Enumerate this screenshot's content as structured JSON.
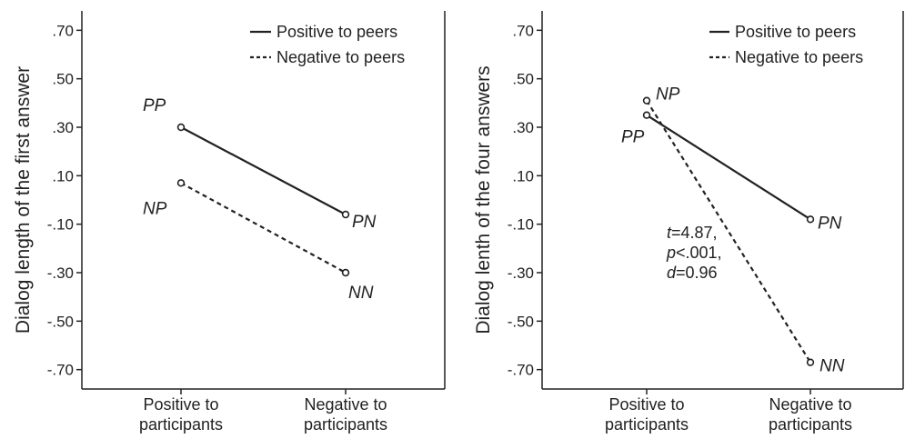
{
  "chart_data": [
    {
      "type": "line",
      "ylabel": "Dialog length of the first answer",
      "categories": [
        "Positive to participants",
        "Negative to participants"
      ],
      "category_lines": [
        [
          "Positive to",
          "participants"
        ],
        [
          "Negative to",
          "participants"
        ]
      ],
      "ylim": [
        -0.78,
        0.78
      ],
      "yticks": [
        0.7,
        0.5,
        0.3,
        0.1,
        -0.1,
        -0.3,
        -0.5,
        -0.7
      ],
      "ytick_labels": [
        ".70",
        ".50",
        ".30",
        ".10",
        "-.10",
        "-.30",
        "-.50",
        "-.70"
      ],
      "legend_position": "top-right",
      "series": [
        {
          "name": "Positive to peers",
          "style": "solid",
          "values": [
            0.3,
            -0.06
          ],
          "point_labels": [
            "PP",
            "PN"
          ]
        },
        {
          "name": "Negative to peers",
          "style": "dashed",
          "values": [
            0.07,
            -0.3
          ],
          "point_labels": [
            "NP",
            "NN"
          ]
        }
      ],
      "annotation": []
    },
    {
      "type": "line",
      "ylabel": "Dialog lenth of the four answers",
      "categories": [
        "Positive to participants",
        "Negative to participants"
      ],
      "category_lines": [
        [
          "Positive to",
          "participants"
        ],
        [
          "Negative to",
          "participants"
        ]
      ],
      "ylim": [
        -0.78,
        0.78
      ],
      "yticks": [
        0.7,
        0.5,
        0.3,
        0.1,
        -0.1,
        -0.3,
        -0.5,
        -0.7
      ],
      "ytick_labels": [
        ".70",
        ".50",
        ".30",
        ".10",
        "-.10",
        "-.30",
        "-.50",
        "-.70"
      ],
      "legend_position": "top-right",
      "series": [
        {
          "name": "Positive to peers",
          "style": "solid",
          "values": [
            0.35,
            -0.08
          ],
          "point_labels": [
            "PP",
            "PN"
          ]
        },
        {
          "name": "Negative to peers",
          "style": "dashed",
          "values": [
            0.41,
            -0.67
          ],
          "point_labels": [
            "NP",
            "NN"
          ]
        }
      ],
      "annotation": [
        {
          "italic": "t",
          "rest": "=4.87,"
        },
        {
          "italic": "p",
          "rest": "<.001,"
        },
        {
          "italic": "d",
          "rest": "=0.96"
        }
      ]
    }
  ]
}
